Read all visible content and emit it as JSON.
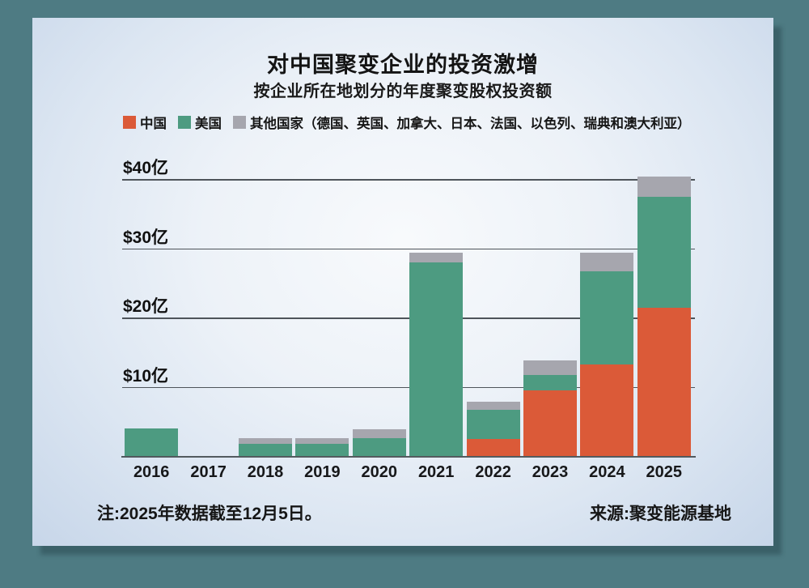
{
  "header": {
    "title": "对中国聚变企业的投资激增",
    "subtitle": "按企业所在地划分的年度聚变股权投资额"
  },
  "legend": {
    "items": [
      {
        "label": "中国",
        "color": "#DB5A38"
      },
      {
        "label": "美国",
        "color": "#4D9B81"
      },
      {
        "label": "其他国家（德国、英国、加拿大、日本、法国、以色列、瑞典和澳大利亚）",
        "color": "#A6A6AE"
      }
    ]
  },
  "footer": {
    "note": "注:2025年数据截至12月5日。",
    "source": "来源:聚变能源基地"
  },
  "colors": {
    "page_background": "#4E7B83",
    "china": "#DB5A38",
    "usa": "#4D9B81",
    "other": "#A6A6AE",
    "gridline": "#4E545A"
  },
  "chart_data": {
    "type": "bar",
    "stacked": true,
    "title": "对中国聚变企业的投资激增",
    "subtitle": "按企业所在地划分的年度聚变股权投资额",
    "unit": "亿美元 (USD 100M)",
    "categories": [
      "2016",
      "2017",
      "2018",
      "2019",
      "2020",
      "2021",
      "2022",
      "2023",
      "2024",
      "2025"
    ],
    "series": [
      {
        "name": "中国",
        "color": "#DB5A38",
        "values": [
          0,
          0,
          0,
          0,
          0,
          0,
          2.5,
          9.5,
          13.2,
          21.4
        ]
      },
      {
        "name": "美国",
        "color": "#4D9B81",
        "values": [
          4.0,
          0,
          1.8,
          1.8,
          2.6,
          27.9,
          4.2,
          2.2,
          13.5,
          16.0
        ]
      },
      {
        "name": "其他国家",
        "color": "#A6A6AE",
        "values": [
          0,
          0,
          0.8,
          0.8,
          1.3,
          1.4,
          1.1,
          2.1,
          2.6,
          2.9
        ]
      }
    ],
    "y_ticks": [
      "$10亿",
      "$20亿",
      "$30亿",
      "$40亿"
    ],
    "y_tick_values": [
      10,
      20,
      30,
      40
    ],
    "ylim": [
      0,
      42
    ],
    "xlabel": "",
    "ylabel": "",
    "legend_position": "top-left",
    "grid": true
  }
}
